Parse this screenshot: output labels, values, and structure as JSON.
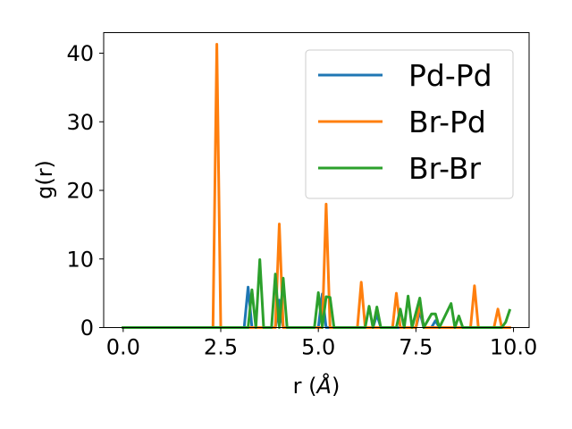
{
  "chart_data": {
    "type": "line",
    "xlabel_main": "r (",
    "xlabel_unit": "Å",
    "xlabel_close": ")",
    "ylabel": "g(r)",
    "xlim": [
      -0.5,
      10.4
    ],
    "ylim": [
      0,
      43
    ],
    "xticks": [
      0.0,
      2.5,
      5.0,
      7.5,
      10.0
    ],
    "xtick_labels": [
      "0.0",
      "2.5",
      "5.0",
      "7.5",
      "10.0"
    ],
    "yticks": [
      0,
      10,
      20,
      30,
      40
    ],
    "ytick_labels": [
      "0",
      "10",
      "20",
      "30",
      "40"
    ],
    "grid": false,
    "legend_position": "top-right",
    "series": [
      {
        "name": "Pd-Pd",
        "color": "#1f77b4",
        "points": [
          [
            0.0,
            0
          ],
          [
            3.1,
            0
          ],
          [
            3.2,
            5.9
          ],
          [
            3.3,
            0
          ],
          [
            3.9,
            0
          ],
          [
            4.0,
            4.0
          ],
          [
            4.1,
            0
          ],
          [
            5.0,
            0
          ],
          [
            5.1,
            4.9
          ],
          [
            5.2,
            0
          ],
          [
            6.4,
            0
          ],
          [
            6.5,
            1.9
          ],
          [
            6.6,
            0
          ],
          [
            7.5,
            0
          ],
          [
            7.6,
            2.4
          ],
          [
            7.7,
            0
          ],
          [
            7.9,
            0
          ],
          [
            8.0,
            1.0
          ],
          [
            8.1,
            0
          ],
          [
            9.9,
            0
          ]
        ]
      },
      {
        "name": "Br-Pd",
        "color": "#ff7f0e",
        "points": [
          [
            0.0,
            0
          ],
          [
            2.3,
            0
          ],
          [
            2.4,
            41.3
          ],
          [
            2.5,
            0
          ],
          [
            3.9,
            0
          ],
          [
            4.0,
            15.1
          ],
          [
            4.1,
            0
          ],
          [
            5.1,
            0
          ],
          [
            5.2,
            18.0
          ],
          [
            5.3,
            0
          ],
          [
            6.0,
            0
          ],
          [
            6.1,
            6.6
          ],
          [
            6.2,
            0
          ],
          [
            6.9,
            0
          ],
          [
            7.0,
            5.0
          ],
          [
            7.1,
            0
          ],
          [
            7.5,
            0
          ],
          [
            7.6,
            3.5
          ],
          [
            7.7,
            0
          ],
          [
            8.9,
            0
          ],
          [
            9.0,
            6.1
          ],
          [
            9.1,
            0
          ],
          [
            9.5,
            0
          ],
          [
            9.6,
            2.7
          ],
          [
            9.7,
            0
          ],
          [
            9.9,
            0
          ]
        ]
      },
      {
        "name": "Br-Br",
        "color": "#2ca02c",
        "points": [
          [
            0.0,
            0
          ],
          [
            3.2,
            0
          ],
          [
            3.3,
            5.5
          ],
          [
            3.4,
            0
          ],
          [
            3.5,
            9.9
          ],
          [
            3.6,
            0
          ],
          [
            3.8,
            0
          ],
          [
            3.9,
            7.8
          ],
          [
            4.0,
            0
          ],
          [
            4.1,
            7.2
          ],
          [
            4.2,
            0
          ],
          [
            4.9,
            0
          ],
          [
            5.0,
            5.1
          ],
          [
            5.1,
            0
          ],
          [
            5.2,
            4.5
          ],
          [
            5.3,
            4.4
          ],
          [
            5.4,
            0
          ],
          [
            6.2,
            0
          ],
          [
            6.3,
            3.1
          ],
          [
            6.4,
            0
          ],
          [
            6.5,
            3.0
          ],
          [
            6.6,
            0
          ],
          [
            7.0,
            0
          ],
          [
            7.1,
            2.7
          ],
          [
            7.2,
            0
          ],
          [
            7.3,
            4.6
          ],
          [
            7.4,
            0
          ],
          [
            7.6,
            4.3
          ],
          [
            7.7,
            0
          ],
          [
            7.9,
            2.0
          ],
          [
            8.0,
            2.0
          ],
          [
            8.1,
            0
          ],
          [
            8.4,
            3.5
          ],
          [
            8.5,
            0
          ],
          [
            8.6,
            1.7
          ],
          [
            8.7,
            0
          ],
          [
            9.7,
            0
          ],
          [
            9.8,
            0.8
          ],
          [
            9.9,
            2.5
          ]
        ]
      }
    ]
  }
}
